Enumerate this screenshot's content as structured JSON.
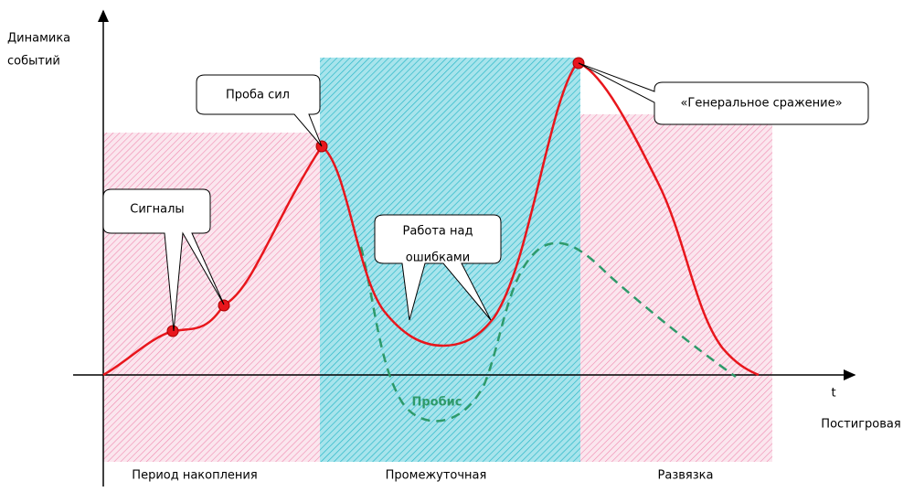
{
  "y_axis_label": [
    "Динамика",
    "событий"
  ],
  "x_axis_label": "t",
  "post_label": "Постигровая",
  "zones": [
    "Период накопления",
    "Промежуточная",
    "Развязка"
  ],
  "callouts": {
    "signals": "Сигналы",
    "probe": "Проба сил",
    "work": [
      "Работа над",
      "ошибками"
    ],
    "battle": "«Генеральное сражение»"
  },
  "dip_label": "Пробис"
}
